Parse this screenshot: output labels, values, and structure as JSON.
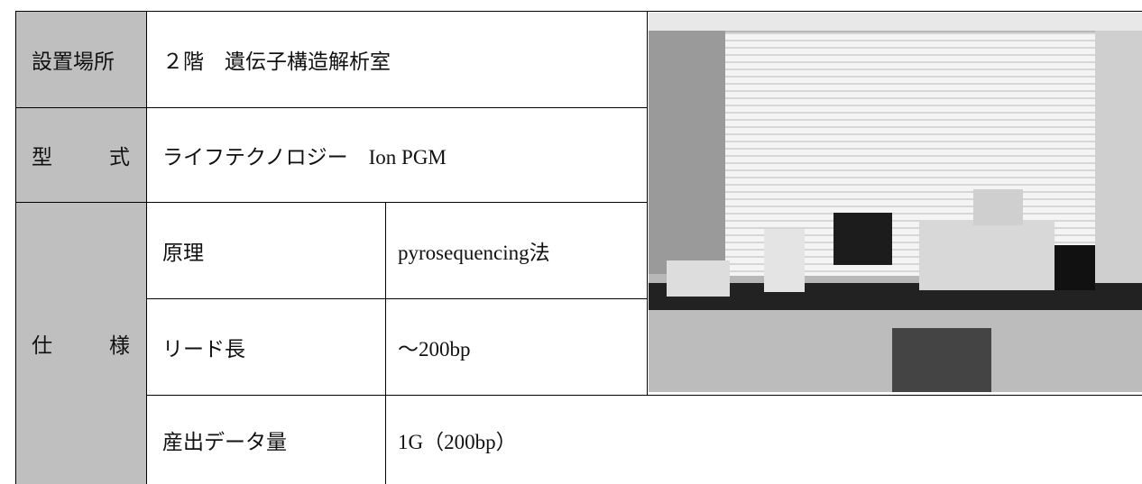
{
  "table": {
    "location": {
      "label": "設置場所",
      "value": "２階　遺伝子構造解析室"
    },
    "model": {
      "label": "型　　式",
      "value": "ライフテクノロジー　Ion PGM"
    },
    "spec": {
      "label": "仕　　様",
      "rows": [
        [
          "原理",
          "pyrosequencing法"
        ],
        [
          "リード長",
          "～200bp"
        ],
        [
          "産出データ量",
          "1G（200bp）"
        ]
      ]
    }
  }
}
